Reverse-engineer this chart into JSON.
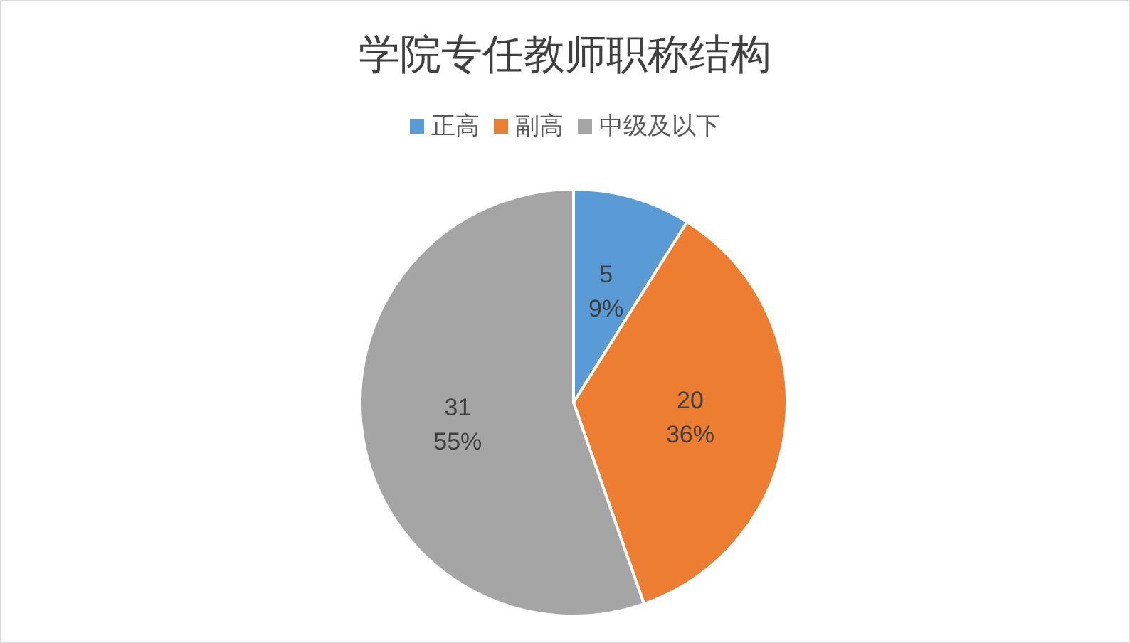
{
  "chart_data": {
    "type": "pie",
    "title": "学院专任教师职称结构",
    "categories": [
      "正高",
      "副高",
      "中级及以下"
    ],
    "values": [
      5,
      20,
      31
    ],
    "colors": [
      "#5b9bd5",
      "#ed7d31",
      "#a5a5a5"
    ],
    "value_labels": [
      "5\n9%",
      "20\n36%",
      "31\n55%"
    ],
    "legend": "top"
  }
}
